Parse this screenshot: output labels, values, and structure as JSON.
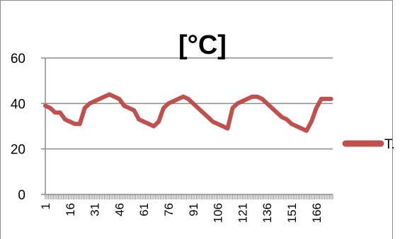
{
  "chart_data": {
    "type": "line",
    "title": "[°C]",
    "xlabel": "",
    "ylabel": "",
    "ylim": [
      0,
      60
    ],
    "yticks": [
      0,
      20,
      40,
      60
    ],
    "xlim": [
      1,
      176
    ],
    "xticks": [
      1,
      16,
      31,
      46,
      61,
      76,
      91,
      106,
      121,
      136,
      151,
      166
    ],
    "grid": true,
    "legend": "right",
    "series_color": "#c0504d",
    "series": [
      {
        "name": "T.",
        "x": [
          1,
          4,
          7,
          10,
          13,
          16,
          19,
          22,
          25,
          28,
          31,
          34,
          37,
          40,
          43,
          46,
          49,
          52,
          55,
          58,
          61,
          64,
          67,
          70,
          73,
          76,
          79,
          82,
          85,
          88,
          91,
          94,
          97,
          100,
          103,
          106,
          109,
          112,
          115,
          118,
          121,
          124,
          127,
          130,
          133,
          136,
          139,
          142,
          145,
          148,
          151,
          154,
          157,
          160,
          163,
          166,
          169,
          172,
          175
        ],
        "values": [
          39,
          38,
          36,
          36,
          33,
          32,
          31,
          31,
          38,
          40,
          41,
          42,
          43,
          44,
          43,
          42,
          39,
          38,
          37,
          33,
          32,
          31,
          30,
          32,
          38,
          40,
          41,
          42,
          43,
          42,
          40,
          38,
          36,
          34,
          32,
          31,
          30,
          29,
          38,
          40,
          41,
          42,
          43,
          43,
          42,
          40,
          38,
          36,
          34,
          33,
          31,
          30,
          29,
          28,
          32,
          38,
          42,
          42,
          42
        ]
      }
    ]
  }
}
